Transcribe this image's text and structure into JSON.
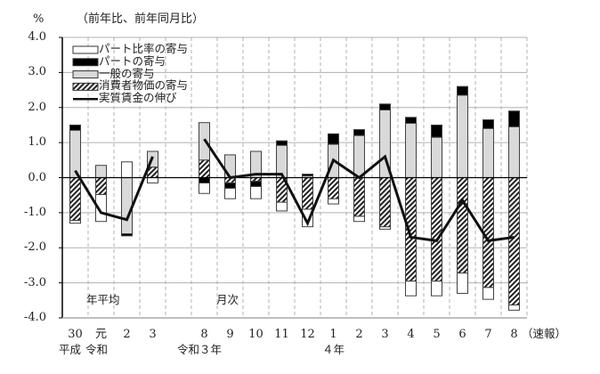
{
  "chart_data": {
    "type": "bar",
    "subtype": "stacked bar with line overlay",
    "title": "（前年比、前年同月比）",
    "ylabel": "%",
    "ylim": [
      -4.0,
      4.0
    ],
    "yticks": [
      "4.0",
      "3.0",
      "2.0",
      "1.0",
      "0.0",
      "-1.0",
      "-2.0",
      "-3.0",
      "-4.0"
    ],
    "grid": true,
    "legend_position": "upper-left inside",
    "categories": [
      "30",
      "元",
      "2",
      "3",
      "",
      "8",
      "9",
      "10",
      "11",
      "12",
      "1",
      "2",
      "3",
      "4",
      "5",
      "6",
      "7",
      "8"
    ],
    "category_sublabels": [
      {
        "index": 0,
        "text": "平成"
      },
      {
        "index": 1,
        "text": "令和"
      },
      {
        "index": 5,
        "text": "令和３年"
      },
      {
        "index": 10,
        "text": "４年"
      }
    ],
    "category_suffix_last": "（速報）",
    "group_labels": [
      {
        "text": "年平均",
        "index": 1
      },
      {
        "text": "月次",
        "index": 6
      }
    ],
    "series": [
      {
        "name": "パート比率の寄与",
        "style": "white",
        "segments": [
          [
            -1.22,
            -1.3
          ],
          [
            -0.48,
            -1.25
          ],
          [
            0,
            0.45
          ],
          [
            0,
            -0.15
          ],
          null,
          [
            -0.15,
            -0.45
          ],
          [
            -0.3,
            -0.6
          ],
          [
            -0.25,
            -0.6
          ],
          [
            -0.7,
            -0.95
          ],
          [
            -0.9,
            -1.4
          ],
          [
            -0.6,
            -0.75
          ],
          [
            -1.1,
            -1.25
          ],
          [
            -1.4,
            -1.47
          ],
          [
            -2.95,
            -3.37
          ],
          [
            -2.95,
            -3.37
          ],
          [
            -2.72,
            -3.3
          ],
          [
            -3.13,
            -3.47
          ],
          [
            -3.63,
            -3.78
          ]
        ]
      },
      {
        "name": "パートの寄与",
        "style": "black",
        "segments": [
          [
            1.35,
            1.5
          ],
          null,
          [
            -1.6,
            -1.66
          ],
          null,
          null,
          [
            0,
            -0.15
          ],
          [
            -0.15,
            -0.3
          ],
          [
            -0.1,
            -0.25
          ],
          [
            0.92,
            1.05
          ],
          [
            0.05,
            0.1
          ],
          [
            0.95,
            1.25
          ],
          [
            1.2,
            1.37
          ],
          [
            1.93,
            2.1
          ],
          [
            1.55,
            1.72
          ],
          [
            1.15,
            1.5
          ],
          [
            2.35,
            2.6
          ],
          [
            1.4,
            1.65
          ],
          [
            1.45,
            1.9
          ]
        ]
      },
      {
        "name": "一般の寄与",
        "style": "gray",
        "segments": [
          [
            0,
            1.35
          ],
          [
            0,
            0.35
          ],
          [
            0,
            -1.6
          ],
          [
            0.3,
            0.75
          ],
          null,
          [
            0.5,
            1.57
          ],
          [
            0,
            0.65
          ],
          [
            0,
            0.75
          ],
          [
            0,
            0.92
          ],
          [
            0,
            0.05
          ],
          [
            0,
            0.95
          ],
          [
            0,
            1.2
          ],
          [
            0,
            1.93
          ],
          [
            0,
            1.55
          ],
          [
            0,
            1.15
          ],
          [
            0,
            2.35
          ],
          [
            0,
            1.4
          ],
          [
            0,
            1.45
          ]
        ]
      },
      {
        "name": "消費者物価の寄与",
        "style": "hatch",
        "segments": [
          [
            0,
            -1.22
          ],
          [
            0,
            -0.48
          ],
          null,
          [
            0,
            0.3
          ],
          null,
          [
            0,
            0.5
          ],
          [
            0,
            -0.15
          ],
          [
            0,
            -0.1
          ],
          [
            0,
            -0.7
          ],
          [
            0,
            -0.9
          ],
          [
            0,
            -0.6
          ],
          [
            0,
            -1.1
          ],
          [
            0,
            -1.4
          ],
          [
            0,
            -2.95
          ],
          [
            0,
            -2.95
          ],
          [
            0,
            -2.72
          ],
          [
            0,
            -3.13
          ],
          [
            0,
            -3.63
          ]
        ]
      },
      {
        "name": "実質賃金の伸び",
        "style": "line",
        "values": [
          0.2,
          -1.0,
          -1.2,
          0.6,
          null,
          1.1,
          0.0,
          0.1,
          0.1,
          -1.3,
          0.5,
          0.0,
          0.6,
          -1.7,
          -1.8,
          -0.65,
          -1.8,
          -1.7
        ]
      }
    ]
  },
  "header": {
    "unit_label": "%",
    "title": "（前年比、前年同月比）"
  },
  "axis": {
    "yticks": [
      "4.0",
      "3.0",
      "2.0",
      "1.0",
      "0.0",
      "-1.0",
      "-2.0",
      "-3.0",
      "-4.0"
    ],
    "xticks": [
      "30",
      "元",
      "2",
      "3",
      "",
      "8",
      "9",
      "10",
      "11",
      "12",
      "1",
      "2",
      "3",
      "4",
      "5",
      "6",
      "7",
      "8"
    ],
    "sublabel_heisei": "平成",
    "sublabel_reiwa": "令和",
    "sublabel_r3": "令和３年",
    "sublabel_r4": "４年",
    "suffix_last": "（速報）"
  },
  "groups": {
    "annual": "年平均",
    "monthly": "月次"
  },
  "legend": {
    "items": [
      {
        "label": "パート比率の寄与",
        "style": "white"
      },
      {
        "label": "パートの寄与",
        "style": "black"
      },
      {
        "label": "一般の寄与",
        "style": "gray"
      },
      {
        "label": "消費者物価の寄与",
        "style": "hatch"
      },
      {
        "label": "実質賃金の伸び",
        "style": "line"
      }
    ]
  },
  "colors": {
    "gray_fill": "#d9d9d9",
    "black_fill": "#000000",
    "white_fill": "#ffffff",
    "bar_stroke": "#404040",
    "grid": "#b0b0b0",
    "line": "#111111"
  }
}
